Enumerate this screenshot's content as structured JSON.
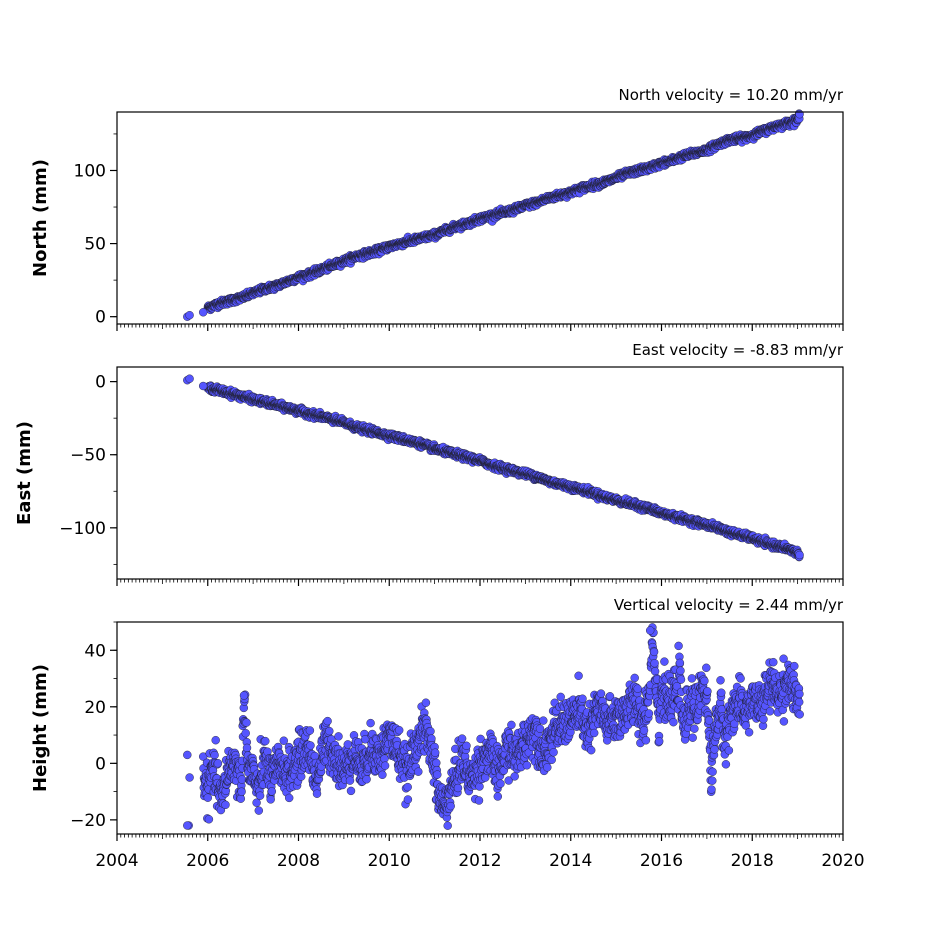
{
  "chart_data": [
    {
      "type": "scatter",
      "title": "North velocity = 10.20 mm/yr",
      "xlabel": "",
      "ylabel": "North (mm)",
      "xlim": [
        2004,
        2020
      ],
      "ylim": [
        -5,
        140
      ],
      "x_ticks": [
        2004,
        2006,
        2008,
        2010,
        2012,
        2014,
        2016,
        2018,
        2020
      ],
      "x_tick_labels_shown": false,
      "y_ticks": [
        0,
        50,
        100
      ],
      "y_tick_labels": [
        "0",
        "50",
        "100"
      ],
      "marker_color": "#5555ff",
      "marker_edge_color": "#1a1a1a",
      "series": [
        {
          "x": [
            2005.55,
            2005.6,
            2005.9,
            2006.0,
            2006.25,
            2006.5,
            2006.75,
            2007.0,
            2007.25,
            2007.5,
            2007.75,
            2008.0,
            2008.25,
            2008.5,
            2008.75,
            2009.0,
            2009.25,
            2009.5,
            2009.75,
            2010.0,
            2010.25,
            2010.5,
            2010.75,
            2011.0,
            2011.25,
            2011.5,
            2011.75,
            2012.0,
            2012.25,
            2012.5,
            2012.75,
            2013.0,
            2013.25,
            2013.5,
            2013.75,
            2014.0,
            2014.25,
            2014.5,
            2014.75,
            2015.0,
            2015.25,
            2015.5,
            2015.75,
            2016.0,
            2016.25,
            2016.5,
            2016.75,
            2017.0,
            2017.25,
            2017.5,
            2017.75,
            2018.0,
            2018.25,
            2018.5,
            2018.75,
            2019.0,
            2019.05
          ],
          "y": [
            0,
            1,
            3,
            6,
            9,
            11,
            13,
            16,
            19,
            21,
            24,
            27,
            29,
            32,
            35,
            38,
            41,
            43,
            45,
            48,
            50,
            52,
            54,
            56,
            59,
            62,
            64,
            67,
            69,
            71,
            73,
            76,
            78,
            81,
            83,
            85,
            88,
            90,
            92,
            95,
            98,
            100,
            102,
            105,
            107,
            110,
            112,
            114,
            118,
            121,
            122,
            124,
            127,
            130,
            132,
            135,
            137
          ]
        }
      ]
    },
    {
      "type": "scatter",
      "title": "East velocity = -8.83 mm/yr",
      "xlabel": "",
      "ylabel": "East (mm)",
      "xlim": [
        2004,
        2020
      ],
      "ylim": [
        -135,
        10
      ],
      "x_ticks": [
        2004,
        2006,
        2008,
        2010,
        2012,
        2014,
        2016,
        2018,
        2020
      ],
      "x_tick_labels_shown": false,
      "y_ticks": [
        0,
        -50,
        -100
      ],
      "y_tick_labels": [
        "0",
        "−50",
        "−100"
      ],
      "marker_color": "#5555ff",
      "marker_edge_color": "#1a1a1a",
      "series": [
        {
          "x": [
            2005.55,
            2005.6,
            2005.9,
            2006.0,
            2006.25,
            2006.5,
            2006.75,
            2007.0,
            2007.25,
            2007.5,
            2007.75,
            2008.0,
            2008.25,
            2008.5,
            2008.75,
            2009.0,
            2009.25,
            2009.5,
            2009.75,
            2010.0,
            2010.25,
            2010.5,
            2010.75,
            2011.0,
            2011.25,
            2011.5,
            2011.75,
            2012.0,
            2012.25,
            2012.5,
            2012.75,
            2013.0,
            2013.25,
            2013.5,
            2013.75,
            2014.0,
            2014.25,
            2014.5,
            2014.75,
            2015.0,
            2015.25,
            2015.5,
            2015.75,
            2016.0,
            2016.25,
            2016.5,
            2016.75,
            2017.0,
            2017.25,
            2017.5,
            2017.75,
            2018.0,
            2018.25,
            2018.5,
            2018.75,
            2019.0,
            2019.05
          ],
          "y": [
            1,
            2,
            -3,
            -4,
            -6,
            -8,
            -10,
            -12,
            -14,
            -16,
            -18,
            -20,
            -22,
            -24,
            -26,
            -28,
            -31,
            -33,
            -35,
            -37,
            -39,
            -41,
            -43,
            -46,
            -48,
            -50,
            -52,
            -54,
            -57,
            -59,
            -61,
            -63,
            -65,
            -68,
            -70,
            -72,
            -74,
            -76,
            -79,
            -81,
            -83,
            -85,
            -87,
            -90,
            -92,
            -94,
            -96,
            -98,
            -100,
            -103,
            -105,
            -107,
            -110,
            -112,
            -114,
            -117,
            -120
          ]
        }
      ]
    },
    {
      "type": "scatter",
      "title": "Vertical velocity = 2.44 mm/yr",
      "xlabel": "",
      "ylabel": "Height (mm)",
      "xlim": [
        2004,
        2020
      ],
      "ylim": [
        -25,
        50
      ],
      "x_ticks": [
        2004,
        2006,
        2008,
        2010,
        2012,
        2014,
        2016,
        2018,
        2020
      ],
      "x_tick_labels": [
        "2004",
        "2006",
        "2008",
        "2010",
        "2012",
        "2014",
        "2016",
        "2018",
        "2020"
      ],
      "x_tick_labels_shown": true,
      "y_ticks": [
        -20,
        0,
        20,
        40
      ],
      "y_tick_labels": [
        "−20",
        "0",
        "20",
        "40"
      ],
      "marker_color": "#5555ff",
      "marker_edge_color": "#1a1a1a",
      "series": [
        {
          "x": [
            2005.55,
            2005.58,
            2005.6,
            2005.9,
            2006.0,
            2006.1,
            2006.2,
            2006.3,
            2006.45,
            2006.6,
            2006.75,
            2006.8,
            2006.9,
            2007.0,
            2007.1,
            2007.25,
            2007.4,
            2007.6,
            2007.8,
            2008.0,
            2008.2,
            2008.4,
            2008.6,
            2008.8,
            2009.0,
            2009.2,
            2009.4,
            2009.6,
            2009.8,
            2010.0,
            2010.2,
            2010.4,
            2010.6,
            2010.8,
            2011.0,
            2011.05,
            2011.2,
            2011.4,
            2011.6,
            2011.8,
            2012.0,
            2012.2,
            2012.4,
            2012.6,
            2012.8,
            2013.0,
            2013.2,
            2013.4,
            2013.6,
            2013.8,
            2014.0,
            2014.2,
            2014.4,
            2014.6,
            2014.8,
            2015.0,
            2015.2,
            2015.4,
            2015.6,
            2015.75,
            2015.8,
            2015.95,
            2016.0,
            2016.2,
            2016.4,
            2016.5,
            2016.6,
            2016.8,
            2016.9,
            2017.0,
            2017.1,
            2017.2,
            2017.3,
            2017.4,
            2017.6,
            2017.8,
            2018.0,
            2018.2,
            2018.4,
            2018.6,
            2018.8,
            2019.0,
            2019.05
          ],
          "y": [
            3,
            -22,
            -5,
            -3,
            -10,
            -2,
            -6,
            -14,
            -2,
            0,
            -8,
            24,
            -4,
            -2,
            -12,
            2,
            -6,
            0,
            -4,
            2,
            6,
            -6,
            8,
            3,
            -3,
            4,
            -2,
            6,
            2,
            10,
            4,
            -4,
            8,
            12,
            0,
            -9,
            -16,
            -8,
            2,
            -6,
            0,
            4,
            -4,
            6,
            2,
            8,
            12,
            4,
            10,
            14,
            16,
            18,
            10,
            20,
            14,
            16,
            18,
            22,
            15,
            26,
            47,
            14,
            26,
            20,
            30,
            10,
            22,
            18,
            30,
            24,
            -4,
            14,
            20,
            8,
            22,
            18,
            22,
            20,
            28,
            24,
            30,
            22,
            18
          ]
        }
      ]
    }
  ]
}
